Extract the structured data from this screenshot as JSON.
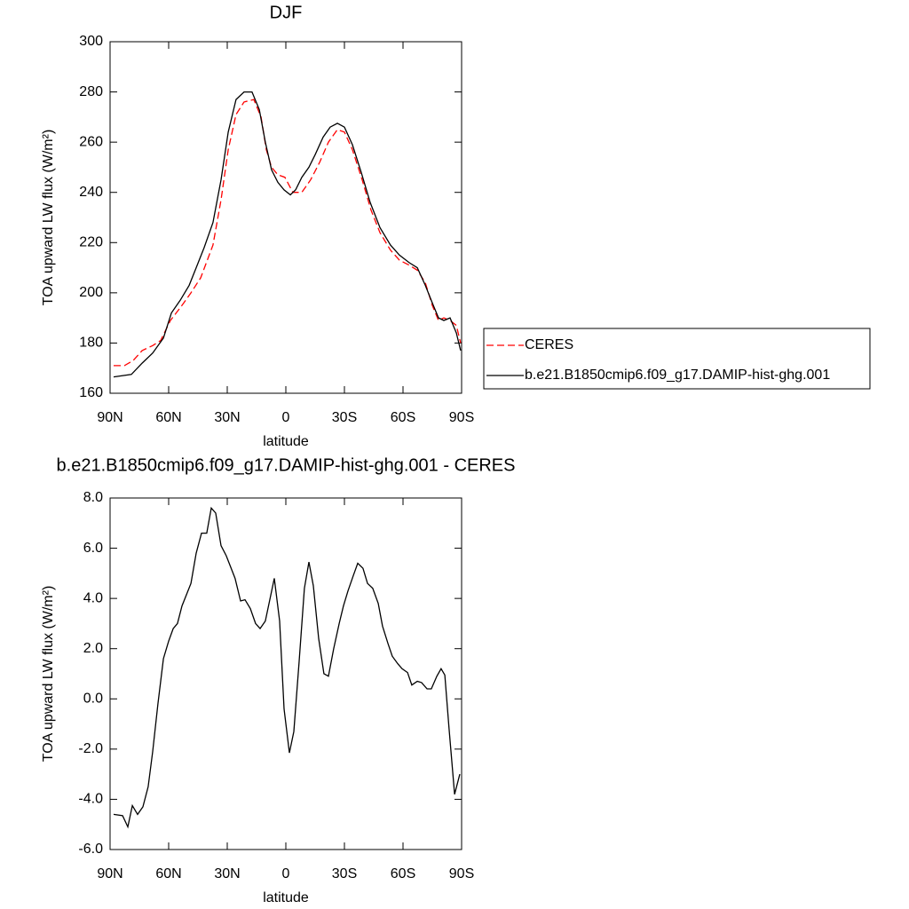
{
  "chart_data": [
    {
      "type": "line",
      "title": "DJF",
      "ylabel": "TOA upward LW flux (W/m²)",
      "xlabel": "latitude",
      "xlim": [
        90,
        -90
      ],
      "xticks": [
        {
          "value": 90,
          "label": "90N"
        },
        {
          "value": 60,
          "label": "60N"
        },
        {
          "value": 30,
          "label": "30N"
        },
        0,
        {
          "value": -30,
          "label": "30S"
        },
        {
          "value": -60,
          "label": "60S"
        },
        {
          "value": -90,
          "label": "90S"
        }
      ],
      "ylim": [
        160,
        300
      ],
      "yticks": [
        160,
        180,
        200,
        220,
        240,
        260,
        280,
        300
      ],
      "legend": "right",
      "series": [
        {
          "name": "CERES",
          "color": "#ff0000",
          "linestyle": "dashed",
          "x": [
            88.2,
            82.7,
            78.2,
            73.6,
            68.2,
            64.1,
            59.1,
            53.2,
            48.6,
            43.6,
            37.3,
            33.2,
            29.5,
            25.5,
            21.4,
            16.4,
            12.7,
            10,
            7.3,
            4.1,
            0.5,
            -3.6,
            -8.2,
            -12.7,
            -17.3,
            -21.8,
            -26.4,
            -30,
            -34.1,
            -39.1,
            -43.6,
            -48.2,
            -53.6,
            -58.2,
            -63.2,
            -67.3,
            -71.4,
            -75,
            -78.2,
            -80.9,
            -84.1,
            -87.3,
            -89.5
          ],
          "values": [
            171,
            171,
            173,
            177,
            179,
            181,
            189,
            195,
            200,
            206,
            219,
            237,
            257,
            271,
            276,
            277,
            270,
            257,
            250,
            247,
            246,
            240,
            240,
            245,
            252,
            260,
            265,
            264,
            257,
            245,
            233,
            224,
            217,
            213,
            211,
            209,
            204,
            195,
            189,
            190,
            189,
            187,
            180
          ]
        },
        {
          "name": "b.e21.B1850cmip6.f09_g17.DAMIP-hist-ghg.001",
          "color": "#000000",
          "linestyle": "solid",
          "x": [
            88.2,
            79.1,
            73.6,
            68.2,
            62.7,
            58.6,
            54.1,
            49.5,
            45.9,
            41.8,
            37.3,
            33.2,
            29.5,
            25.5,
            21.4,
            17.3,
            13.6,
            10.5,
            7.3,
            4.1,
            0.9,
            -2.3,
            -5,
            -8.2,
            -11.8,
            -15,
            -19.1,
            -22.7,
            -26.4,
            -30,
            -34.1,
            -38.6,
            -43.2,
            -48.2,
            -53.6,
            -58.2,
            -63.2,
            -67.3,
            -71.4,
            -75,
            -78.2,
            -80.9,
            -84.1,
            -87.3,
            -89.5
          ],
          "values": [
            166.5,
            167.5,
            172,
            176,
            182,
            192,
            197,
            203,
            210,
            218,
            228,
            245,
            264,
            277,
            280,
            280,
            273,
            260,
            249,
            244,
            241,
            239,
            241,
            246,
            250,
            255,
            262,
            266,
            267.5,
            266,
            259,
            248,
            236,
            226,
            219,
            215,
            212,
            210,
            203,
            196,
            190,
            189,
            190,
            184,
            177
          ]
        }
      ]
    },
    {
      "type": "line",
      "title": "b.e21.B1850cmip6.f09_g17.DAMIP-hist-ghg.001 - CERES",
      "ylabel": "TOA upward LW flux (W/m²)",
      "xlabel": "latitude",
      "xlim": [
        90,
        -90
      ],
      "xticks": [
        {
          "value": 90,
          "label": "90N"
        },
        {
          "value": 60,
          "label": "60N"
        },
        {
          "value": 30,
          "label": "30N"
        },
        0,
        {
          "value": -30,
          "label": "30S"
        },
        {
          "value": -60,
          "label": "60S"
        },
        {
          "value": -90,
          "label": "90S"
        }
      ],
      "ylim": [
        -6,
        8
      ],
      "yticks": [
        {
          "value": -6,
          "label": "-6.0"
        },
        {
          "value": -4,
          "label": "-4.0"
        },
        {
          "value": -2,
          "label": "-2.0"
        },
        {
          "value": 0,
          "label": "0.0"
        },
        {
          "value": 2,
          "label": "2.0"
        },
        {
          "value": 4,
          "label": "4.0"
        },
        {
          "value": 6,
          "label": "6.0"
        },
        {
          "value": 8,
          "label": "8.0"
        }
      ],
      "series": [
        {
          "color": "#000000",
          "linestyle": "solid",
          "x": [
            88.2,
            83.6,
            80.9,
            78.6,
            75.9,
            73.2,
            70.5,
            68.2,
            65.5,
            62.7,
            60,
            57.7,
            55.5,
            53.2,
            48.6,
            45.9,
            43.2,
            40.5,
            38.2,
            35.9,
            33.2,
            30.5,
            26,
            23.2,
            20.9,
            18.2,
            15.5,
            13.2,
            10.5,
            5.9,
            3.2,
            0.9,
            -1.8,
            -4.1,
            -6.8,
            -9.5,
            -11.8,
            -14.1,
            -16.8,
            -19.5,
            -21.8,
            -24.5,
            -27.3,
            -29.5,
            -31.8,
            -34.5,
            -36.8,
            -39.5,
            -41.8,
            -44.5,
            -47.3,
            -49.5,
            -52.3,
            -54.5,
            -57.3,
            -59.5,
            -62.3,
            -64.5,
            -67.3,
            -69.5,
            -72.3,
            -74.5,
            -77.3,
            -79.5,
            -81.4,
            -83.6,
            -86.4,
            -89.1
          ],
          "values": [
            -4.6,
            -4.65,
            -5.1,
            -4.25,
            -4.6,
            -4.3,
            -3.5,
            -2.1,
            -0.2,
            1.6,
            2.3,
            2.8,
            3.0,
            3.7,
            4.6,
            5.8,
            6.6,
            6.6,
            7.6,
            7.4,
            6.1,
            5.7,
            4.8,
            3.9,
            3.95,
            3.6,
            3.0,
            2.8,
            3.1,
            4.8,
            3.1,
            -0.4,
            -2.15,
            -1.3,
            1.5,
            4.4,
            5.45,
            4.5,
            2.4,
            1.0,
            0.9,
            2.0,
            3.0,
            3.7,
            4.3,
            4.9,
            5.4,
            5.2,
            4.6,
            4.4,
            3.8,
            2.9,
            2.2,
            1.7,
            1.4,
            1.2,
            1.05,
            0.55,
            0.7,
            0.65,
            0.4,
            0.4,
            0.9,
            1.2,
            0.95,
            -1.2,
            -3.8,
            -3.0
          ]
        }
      ]
    }
  ]
}
